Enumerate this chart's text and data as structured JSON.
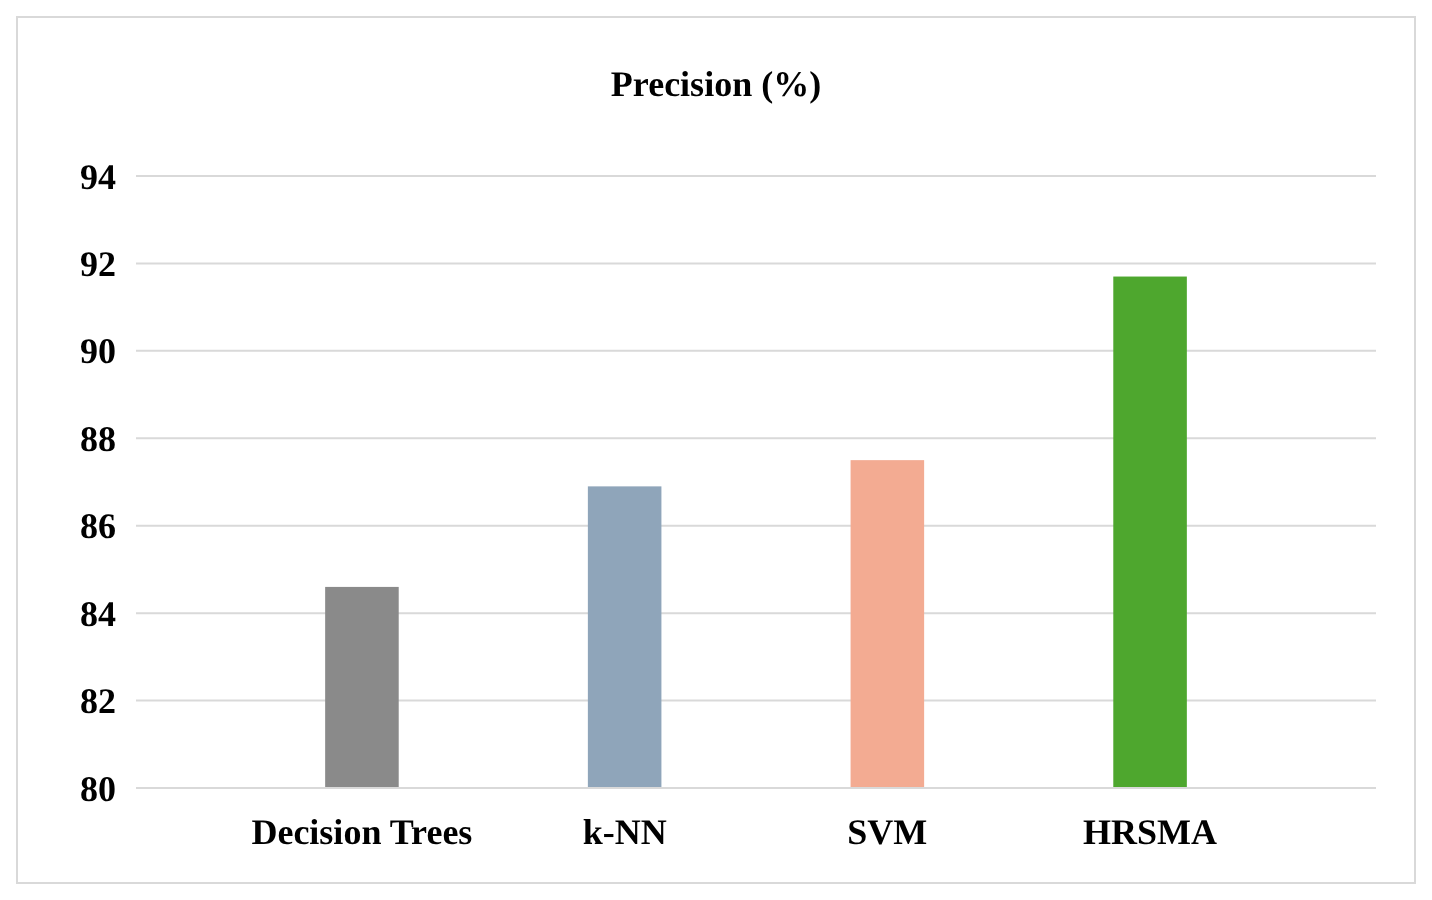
{
  "chart_data": {
    "type": "bar",
    "title": "Precision (%)",
    "categories": [
      "Decision Trees",
      "k-NN",
      "SVM",
      "HRSMA"
    ],
    "values": [
      84.6,
      86.9,
      87.5,
      91.7
    ],
    "colors": [
      "#8a8a8a",
      "#8fa5ba",
      "#f3ab92",
      "#4ea72e"
    ],
    "ylim": [
      80,
      94
    ],
    "yticks": [
      80,
      82,
      84,
      86,
      88,
      90,
      92,
      94
    ],
    "grid": "y"
  }
}
